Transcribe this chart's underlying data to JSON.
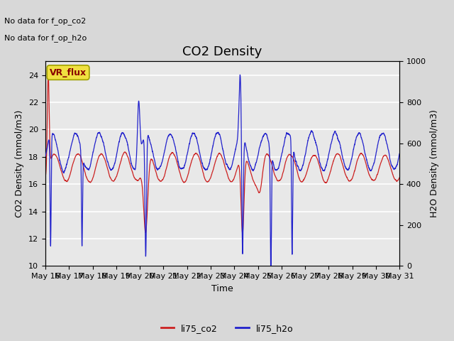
{
  "title": "CO2 Density",
  "xlabel": "Time",
  "ylabel_left": "CO2 Density (mmol/m3)",
  "ylabel_right": "H2O Density (mmol/m3)",
  "no_data_text_1": "No data for f_op_co2",
  "no_data_text_2": "No data for f_op_h2o",
  "vr_flux_label": "VR_flux",
  "legend_entries": [
    "li75_co2",
    "li75_h2o"
  ],
  "co2_color": "#cc2222",
  "h2o_color": "#2222cc",
  "ylim_left": [
    10,
    25
  ],
  "ylim_right": [
    0,
    1000
  ],
  "outer_bg_color": "#d8d8d8",
  "plot_bg_color": "#e8e8e8",
  "grid_color": "#ffffff",
  "vr_flux_bg": "#f0e040",
  "vr_flux_edge": "#a0a000",
  "vr_flux_text_color": "#880000",
  "title_fontsize": 13,
  "axis_label_fontsize": 9,
  "tick_fontsize": 8,
  "no_data_fontsize": 8,
  "vr_flux_fontsize": 9
}
